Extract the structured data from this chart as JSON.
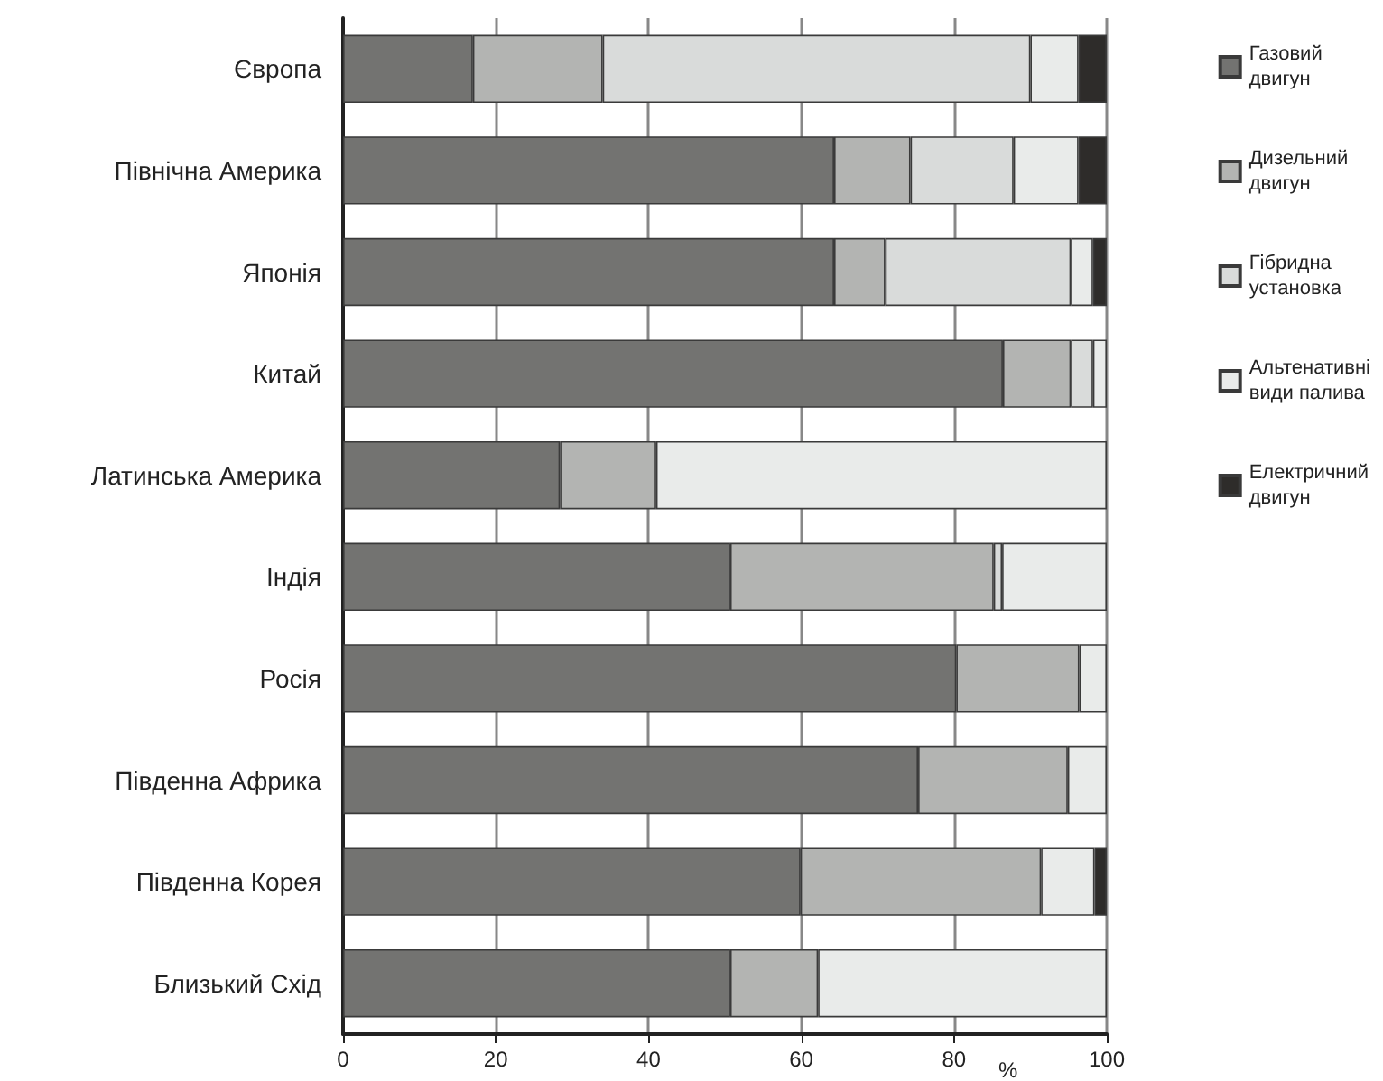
{
  "chart_data": {
    "type": "bar",
    "orientation": "horizontal",
    "stacked": true,
    "xlabel": "%",
    "categories": [
      "Європа",
      "Північна Америка",
      "Японія",
      "Китай",
      "Латинська Америка",
      "Індія",
      "Росія",
      "Південна Африка",
      "Південна Корея",
      "Близький Схід"
    ],
    "series": [
      {
        "name": "Газовий двигун",
        "color": "#737371",
        "values": [
          17,
          64.3,
          64.3,
          86.4,
          28.4,
          50.7,
          80.3,
          75.3,
          59.9,
          50.7
        ]
      },
      {
        "name": "Дизельний двигун",
        "color": "#b3b4b2",
        "values": [
          17,
          10,
          6.7,
          8.9,
          12.6,
          34.5,
          16.1,
          19.6,
          31.5,
          11.5
        ]
      },
      {
        "name": "Гібридна установка",
        "color": "#d9dbda",
        "values": [
          56,
          13.5,
          24.3,
          2.9,
          null,
          1.1,
          null,
          null,
          null,
          null
        ]
      },
      {
        "name": "Альтенативні види палива",
        "color": "#e9ebea",
        "values": [
          6.3,
          8.5,
          2.9,
          1.8,
          59,
          13.7,
          3.6,
          5.1,
          7,
          37.8
        ]
      },
      {
        "name": "Електричний двигун",
        "color": "#2e2c2a",
        "values": [
          3.7,
          3.7,
          1.8,
          null,
          null,
          null,
          null,
          null,
          1.6,
          null
        ]
      }
    ],
    "xlim": [
      0,
      100
    ],
    "xticks": [
      0,
      20,
      40,
      60,
      80,
      100
    ],
    "grid": "x",
    "legend": "right"
  }
}
